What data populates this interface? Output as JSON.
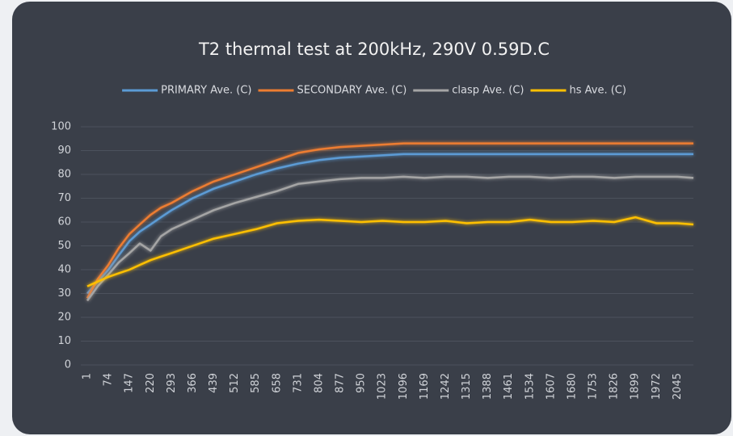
{
  "chart_data": {
    "type": "line",
    "title": "T2 thermal test at 200kHz, 290V 0.59D.C",
    "legend": "top",
    "grid": true,
    "x": [
      1,
      37,
      74,
      110,
      147,
      183,
      220,
      256,
      293,
      366,
      439,
      512,
      585,
      658,
      731,
      804,
      877,
      950,
      1023,
      1096,
      1169,
      1242,
      1315,
      1388,
      1461,
      1534,
      1607,
      1680,
      1753,
      1826,
      1899,
      1972,
      2045,
      2100
    ],
    "xlim": [
      1,
      2100
    ],
    "xticks": [
      1,
      74,
      147,
      220,
      293,
      366,
      439,
      512,
      585,
      658,
      731,
      804,
      877,
      950,
      1023,
      1096,
      1169,
      1242,
      1315,
      1388,
      1461,
      1534,
      1607,
      1680,
      1753,
      1826,
      1899,
      1972,
      2045
    ],
    "ylim": [
      0,
      100
    ],
    "yticks": [
      0,
      10,
      20,
      30,
      40,
      50,
      60,
      70,
      80,
      90,
      100
    ],
    "series": [
      {
        "name": "PRIMARY Ave. (C)",
        "color": "#5b9bd5",
        "values": [
          30,
          35,
          40,
          46,
          52,
          56,
          59,
          62,
          65,
          70,
          74,
          77,
          80,
          82.5,
          84.5,
          86,
          87,
          87.5,
          88,
          88.5,
          88.5,
          88.5,
          88.5,
          88.5,
          88.5,
          88.5,
          88.5,
          88.5,
          88.5,
          88.5,
          88.5,
          88.5,
          88.5,
          88.5
        ]
      },
      {
        "name": "SECONDARY Ave. (C)",
        "color": "#ed7d31",
        "values": [
          28,
          36,
          42,
          49,
          55,
          59,
          63,
          66,
          68,
          73,
          77,
          80,
          83,
          86,
          89,
          90.5,
          91.5,
          92,
          92.5,
          93,
          93,
          93,
          93,
          93,
          93,
          93,
          93,
          93,
          93,
          93,
          93,
          93,
          93,
          93
        ]
      },
      {
        "name": "clasp Ave. (C)",
        "color": "#a5a5a5",
        "values": [
          27,
          33,
          38,
          43,
          47,
          51,
          48,
          54,
          57,
          61,
          65,
          68,
          70.5,
          73,
          76,
          77,
          78,
          78.5,
          78.5,
          79,
          78.5,
          79,
          79,
          78.5,
          79,
          79,
          78.5,
          79,
          79,
          78.5,
          79,
          79,
          79,
          78.5
        ]
      },
      {
        "name": "hs Ave. (C)",
        "color": "#ffc000",
        "values": [
          33,
          35,
          37,
          38.5,
          40,
          42,
          44,
          45.5,
          47,
          50,
          53,
          55,
          57,
          59.5,
          60.5,
          61,
          60.5,
          60,
          60.5,
          60,
          60,
          60.5,
          59.5,
          60,
          60,
          61,
          60,
          60,
          60.5,
          60,
          62,
          59.5,
          59.5,
          59
        ]
      }
    ]
  }
}
